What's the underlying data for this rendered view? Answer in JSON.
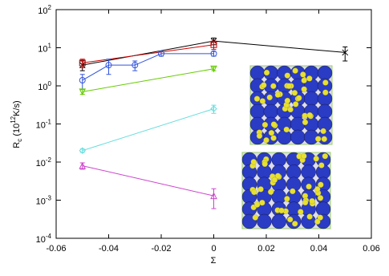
{
  "chart_data": {
    "type": "line",
    "log_y": true,
    "xlabel": "Σ",
    "ylabel": "R_{c} (10^{12}K/s)",
    "xlim": [
      -0.06,
      0.06
    ],
    "xticks": [
      -0.06,
      -0.04,
      -0.02,
      0,
      0.02,
      0.04,
      0.06
    ],
    "ylim": [
      0.0001,
      100
    ],
    "yticks": [
      {
        "value": 0.0001,
        "label": "10^{-4}"
      },
      {
        "value": 0.001,
        "label": "10^{-3}"
      },
      {
        "value": 0.01,
        "label": "10^{-2}"
      },
      {
        "value": 0.1,
        "label": "10^{-1}"
      },
      {
        "value": 1,
        "label": "10^{0}"
      },
      {
        "value": 10,
        "label": "10^{1}"
      },
      {
        "value": 100,
        "label": "10^{2}"
      }
    ],
    "series": [
      {
        "color": "#000000",
        "marker": "x",
        "x": [
          -0.05,
          0,
          0.05
        ],
        "values": [
          3.5,
          15,
          7.5
        ],
        "errors": [
          1,
          3,
          3
        ]
      },
      {
        "color": "#cc0000",
        "marker": "square",
        "x": [
          -0.05,
          0
        ],
        "values": [
          4,
          12
        ],
        "errors": [
          1,
          3
        ]
      },
      {
        "color": "#3355dd",
        "marker": "circle",
        "x": [
          -0.05,
          -0.04,
          -0.03,
          -0.02,
          0
        ],
        "values": [
          1.4,
          3.5,
          3.5,
          7,
          7
        ],
        "errors": [
          0.6,
          1.5,
          1,
          1,
          1
        ]
      },
      {
        "color": "#66cc00",
        "marker": "triangle-down",
        "x": [
          -0.05,
          0
        ],
        "values": [
          0.7,
          2.8
        ],
        "errors": [
          0.1,
          0.3
        ]
      },
      {
        "color": "#66dddd",
        "marker": "diamond",
        "x": [
          -0.05,
          0
        ],
        "values": [
          0.02,
          0.25
        ],
        "errors": [
          0.002,
          0.06
        ]
      },
      {
        "color": "#cc44cc",
        "marker": "triangle-up",
        "x": [
          -0.05,
          0
        ],
        "values": [
          0.008,
          0.0013
        ],
        "errors": [
          0.0015,
          0.0007
        ]
      }
    ]
  }
}
